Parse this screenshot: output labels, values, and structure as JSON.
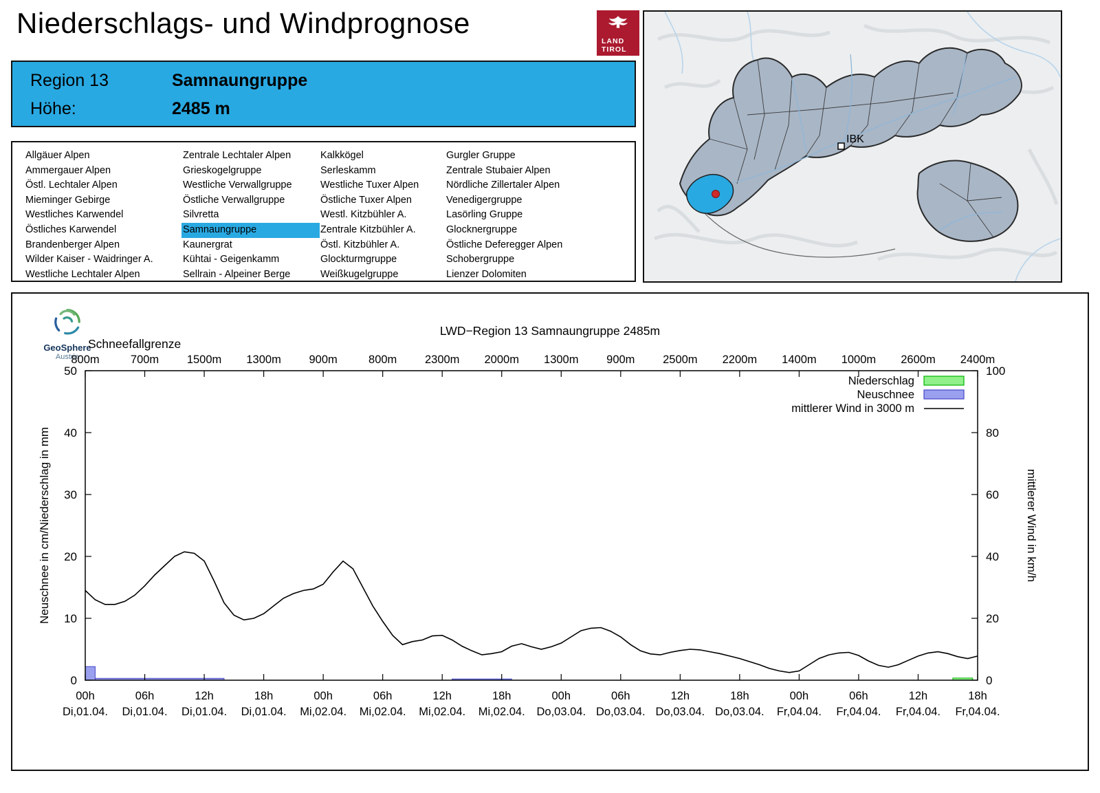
{
  "header": {
    "title": "Niederschlags- und Windprognose",
    "logo": {
      "line1": "LAND",
      "line2": "TIROL"
    }
  },
  "region_info": {
    "region_label": "Region 13",
    "region_name": "Samnaungruppe",
    "altitude_label": "Höhe:",
    "altitude_value": "2485 m"
  },
  "region_list": {
    "selected": "Samnaungruppe",
    "columns": [
      [
        "Allgäuer Alpen",
        "Ammergauer Alpen",
        "Östl. Lechtaler Alpen",
        "Mieminger Gebirge",
        "Westliches Karwendel",
        "Östliches Karwendel",
        "Brandenberger Alpen",
        "Wilder Kaiser - Waidringer A.",
        "Westliche Lechtaler Alpen"
      ],
      [
        "Zentrale Lechtaler Alpen",
        "Grieskogelgruppe",
        "Westliche Verwallgruppe",
        "Östliche Verwallgruppe",
        "Silvretta",
        "Samnaungruppe",
        "Kaunergrat",
        "Kühtai - Geigenkamm",
        "Sellrain - Alpeiner Berge"
      ],
      [
        "Kalkkögel",
        "Serleskamm",
        "Westliche Tuxer Alpen",
        "Östliche Tuxer Alpen",
        "Westl. Kitzbühler A.",
        "Zentrale Kitzbühler A.",
        "Östl. Kitzbühler A.",
        "Glockturmgruppe",
        "Weißkugelgruppe"
      ],
      [
        "Gurgler Gruppe",
        "Zentrale Stubaier Alpen",
        "Nördliche Zillertaler Alpen",
        "Venedigergruppe",
        "Lasörling Gruppe",
        "Glocknergruppe",
        "Östliche Deferegger Alpen",
        "Schobergruppe",
        "Lienzer Dolomiten"
      ]
    ]
  },
  "map": {
    "city_label": "IBK"
  },
  "chart_panel": {
    "brand_line1": "GeoSphere",
    "brand_line2": "Austria"
  },
  "chart_data": {
    "type": "line+bar",
    "title": "LWD−Region 13 Samnaungruppe 2485m",
    "snowline_label": "Schneefallgrenze",
    "snowline_values": [
      "800m",
      "700m",
      "1500m",
      "1300m",
      "900m",
      "800m",
      "2300m",
      "2000m",
      "1300m",
      "900m",
      "2500m",
      "2200m",
      "1400m",
      "1000m",
      "2600m",
      "2400m"
    ],
    "x_tick_hours": [
      "00h",
      "06h",
      "12h",
      "18h",
      "00h",
      "06h",
      "12h",
      "18h",
      "00h",
      "06h",
      "12h",
      "18h",
      "00h",
      "06h",
      "12h",
      "18h"
    ],
    "x_tick_dates": [
      "Di,01.04.",
      "Di,01.04.",
      "Di,01.04.",
      "Di,01.04.",
      "Mi,02.04.",
      "Mi,02.04.",
      "Mi,02.04.",
      "Mi,02.04.",
      "Do,03.04.",
      "Do,03.04.",
      "Do,03.04.",
      "Do,03.04.",
      "Fr,04.04.",
      "Fr,04.04.",
      "Fr,04.04.",
      "Fr,04.04."
    ],
    "x_hours_range": [
      0,
      90
    ],
    "ylabel_left": "Neuschnee in cm/Niederschlag in mm",
    "ylabel_right": "mittlerer Wind in km/h",
    "ylim_left": [
      0,
      50
    ],
    "ylim_right": [
      0,
      100
    ],
    "yticks_left": [
      0,
      10,
      20,
      30,
      40,
      50
    ],
    "yticks_right": [
      0,
      20,
      40,
      60,
      80,
      100
    ],
    "grid": false,
    "legend_position": "top-right",
    "legend": [
      {
        "label": "Niederschlag",
        "swatch": "box",
        "fill": "#90f08a",
        "stroke": "#00b400"
      },
      {
        "label": "Neuschnee",
        "swatch": "box",
        "fill": "#9aa0ee",
        "stroke": "#4646c8"
      },
      {
        "label": "mittlerer Wind in 3000 m",
        "swatch": "line",
        "stroke": "#000000"
      }
    ],
    "series": [
      {
        "name": "Niederschlag",
        "type": "bar",
        "axis": "left",
        "unit": "mm",
        "fill": "#90f08a",
        "stroke": "#00b400",
        "segments": [
          {
            "from": 87.5,
            "to": 89.5,
            "value": 0.35
          }
        ]
      },
      {
        "name": "Neuschnee",
        "type": "bar",
        "axis": "left",
        "unit": "cm",
        "fill": "#9aa0ee",
        "stroke": "#4646c8",
        "segments": [
          {
            "from": 0,
            "to": 1,
            "value": 2.2
          },
          {
            "from": 1,
            "to": 14,
            "value": 0.3
          },
          {
            "from": 37,
            "to": 43,
            "value": 0.2
          }
        ]
      },
      {
        "name": "mittlerer Wind in 3000 m",
        "type": "line",
        "axis": "right",
        "unit": "km/h",
        "points": [
          [
            0,
            29
          ],
          [
            1,
            26
          ],
          [
            2,
            24.5
          ],
          [
            3,
            24.5
          ],
          [
            4,
            25.5
          ],
          [
            5,
            27.5
          ],
          [
            6,
            30.5
          ],
          [
            7,
            34
          ],
          [
            8,
            37
          ],
          [
            9,
            40
          ],
          [
            10,
            41.5
          ],
          [
            11,
            41
          ],
          [
            12,
            38.5
          ],
          [
            13,
            32
          ],
          [
            14,
            25
          ],
          [
            15,
            21
          ],
          [
            16,
            19.5
          ],
          [
            17,
            20
          ],
          [
            18,
            21.5
          ],
          [
            19,
            24
          ],
          [
            20,
            26.5
          ],
          [
            21,
            28
          ],
          [
            22,
            29
          ],
          [
            23,
            29.5
          ],
          [
            24,
            31
          ],
          [
            25,
            35
          ],
          [
            26,
            38.5
          ],
          [
            27,
            36
          ],
          [
            28,
            30
          ],
          [
            29,
            24
          ],
          [
            30,
            19
          ],
          [
            31,
            14.5
          ],
          [
            32,
            11.5
          ],
          [
            33,
            12.5
          ],
          [
            34,
            13
          ],
          [
            35,
            14.3
          ],
          [
            36,
            14.5
          ],
          [
            37,
            13
          ],
          [
            38,
            11
          ],
          [
            39,
            9.5
          ],
          [
            40,
            8.2
          ],
          [
            41,
            8.6
          ],
          [
            42,
            9.2
          ],
          [
            43,
            11
          ],
          [
            44,
            11.8
          ],
          [
            45,
            10.8
          ],
          [
            46,
            10
          ],
          [
            47,
            10.8
          ],
          [
            48,
            12
          ],
          [
            49,
            14
          ],
          [
            50,
            16
          ],
          [
            51,
            16.8
          ],
          [
            52,
            17
          ],
          [
            53,
            15.8
          ],
          [
            54,
            14
          ],
          [
            55,
            11.5
          ],
          [
            56,
            9.5
          ],
          [
            57,
            8.5
          ],
          [
            58,
            8.2
          ],
          [
            59,
            9
          ],
          [
            60,
            9.6
          ],
          [
            61,
            10
          ],
          [
            62,
            9.8
          ],
          [
            63,
            9.2
          ],
          [
            64,
            8.6
          ],
          [
            65,
            7.8
          ],
          [
            66,
            7
          ],
          [
            67,
            6
          ],
          [
            68,
            5
          ],
          [
            69,
            3.8
          ],
          [
            70,
            3
          ],
          [
            71,
            2.5
          ],
          [
            72,
            3
          ],
          [
            73,
            5
          ],
          [
            74,
            7
          ],
          [
            75,
            8.2
          ],
          [
            76,
            8.8
          ],
          [
            77,
            9
          ],
          [
            78,
            8
          ],
          [
            79,
            6.2
          ],
          [
            80,
            4.8
          ],
          [
            81,
            4.2
          ],
          [
            82,
            5
          ],
          [
            83,
            6.4
          ],
          [
            84,
            7.8
          ],
          [
            85,
            8.8
          ],
          [
            86,
            9.2
          ],
          [
            87,
            8.6
          ],
          [
            88,
            7.6
          ],
          [
            89,
            7
          ],
          [
            90,
            7.8
          ]
        ]
      }
    ]
  }
}
